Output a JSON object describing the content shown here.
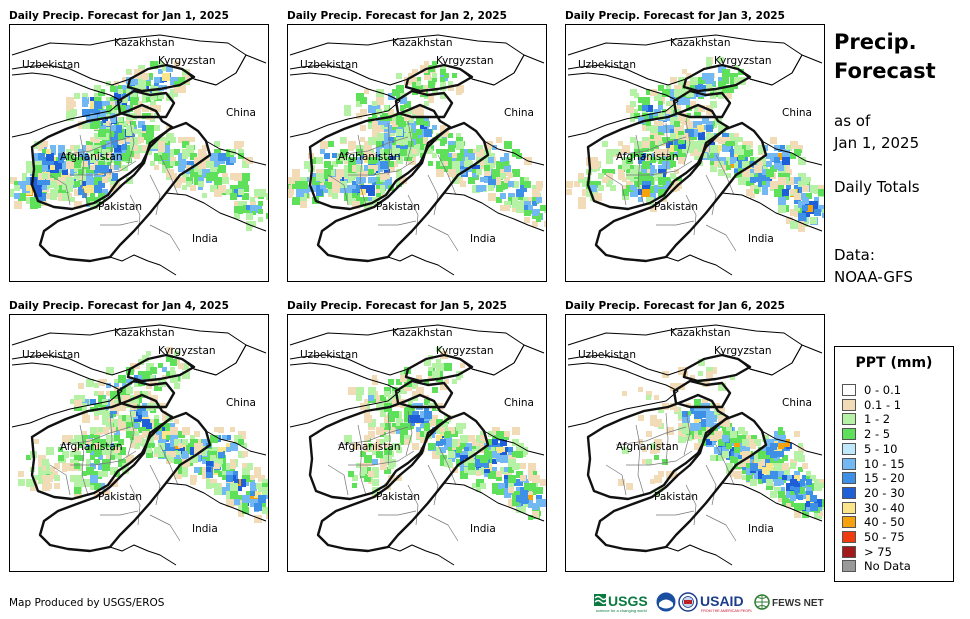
{
  "panels": [
    {
      "title": "Daily Precip. Forecast for Jan 1, 2025"
    },
    {
      "title": "Daily Precip. Forecast for Jan 2, 2025"
    },
    {
      "title": "Daily Precip. Forecast for Jan 3, 2025"
    },
    {
      "title": "Daily Precip. Forecast for Jan 4, 2025"
    },
    {
      "title": "Daily Precip. Forecast for Jan 5, 2025"
    },
    {
      "title": "Daily Precip. Forecast for Jan 6, 2025"
    }
  ],
  "map_labels": {
    "kazakhstan": "Kazakhstan",
    "uzbekistan": "Uzbekistan",
    "kyrgyzstan": "Kyrgyzstan",
    "china": "China",
    "afghanistan": "Afghanistan",
    "pakistan": "Pakistan",
    "india": "India"
  },
  "side": {
    "title_line1": "Precip.",
    "title_line2": "Forecast",
    "asof_line1": "as of",
    "asof_line2": "Jan 1, 2025",
    "totals": "Daily Totals",
    "data_line1": "Data:",
    "data_line2": "NOAA-GFS"
  },
  "legend": {
    "title": "PPT (mm)",
    "items": [
      {
        "label": "0 - 0.1",
        "color": "#ffffff"
      },
      {
        "label": "0.1 - 1",
        "color": "#f2dcb8"
      },
      {
        "label": "1 - 2",
        "color": "#b6f2a6"
      },
      {
        "label": "2 - 5",
        "color": "#5ee05a"
      },
      {
        "label": "5 - 10",
        "color": "#bfe8fb"
      },
      {
        "label": "10 - 15",
        "color": "#72b8f2"
      },
      {
        "label": "15 - 20",
        "color": "#3e8fe6"
      },
      {
        "label": "20 - 30",
        "color": "#1e5fd8"
      },
      {
        "label": "30 - 40",
        "color": "#fbe58a"
      },
      {
        "label": "40 - 50",
        "color": "#f5a20c"
      },
      {
        "label": "50 - 75",
        "color": "#f03c0c"
      },
      {
        "label": "> 75",
        "color": "#a31a1a"
      },
      {
        "label": "No Data",
        "color": "#999999"
      }
    ]
  },
  "credit": "Map Produced by USGS/EROS",
  "logos": {
    "usgs": "USGS",
    "usaid": "USAID",
    "fewsnet": "FEWS NET"
  },
  "precip_intensity": [
    {
      "west": 0.9,
      "central": 0.8,
      "east": 0.5,
      "north": 0.7
    },
    {
      "west": 0.6,
      "central": 0.8,
      "east": 0.6,
      "north": 0.4
    },
    {
      "west": 0.3,
      "central": 0.7,
      "east": 0.8,
      "north": 0.6
    },
    {
      "west": 0.2,
      "central": 0.5,
      "east": 0.8,
      "north": 0.5
    },
    {
      "west": 0.0,
      "central": 0.3,
      "east": 0.8,
      "north": 0.3
    },
    {
      "west": 0.0,
      "central": 0.1,
      "east": 0.9,
      "north": 0.1
    }
  ]
}
